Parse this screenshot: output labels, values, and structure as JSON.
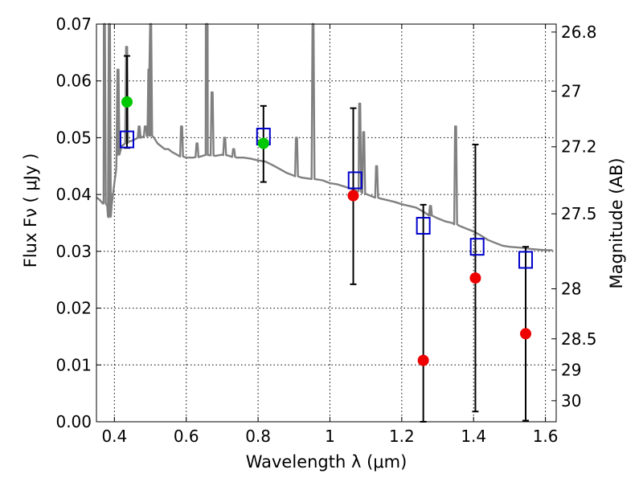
{
  "chart_data": {
    "type": "scatter",
    "xlabel": "Wavelength  λ (μm)",
    "ylabel": "Flux  Fν  ( μJy )",
    "y2label": "Magnitude (AB)",
    "xlim": [
      0.35,
      1.63
    ],
    "ylim": [
      0.0,
      0.07
    ],
    "grid": true,
    "x_ticks": [
      0.4,
      0.6,
      0.8,
      1.0,
      1.2,
      1.4,
      1.6
    ],
    "x_tick_labels": [
      "0.4",
      "0.6",
      "0.8",
      "1",
      "1.2",
      "1.4",
      "1.6"
    ],
    "y_ticks": [
      0.0,
      0.01,
      0.02,
      0.03,
      0.04,
      0.05,
      0.06,
      0.07
    ],
    "y_tick_labels": [
      "0.00",
      "0.01",
      "0.02",
      "0.03",
      "0.04",
      "0.05",
      "0.06",
      "0.07"
    ],
    "y2_ticks": [
      {
        "label": "26.8",
        "flux": 0.0686
      },
      {
        "label": "27",
        "flux": 0.0582
      },
      {
        "label": "27.2",
        "flux": 0.0484
      },
      {
        "label": "27.5",
        "flux": 0.0366
      },
      {
        "label": "28",
        "flux": 0.0234
      },
      {
        "label": "28.5",
        "flux": 0.0146
      },
      {
        "label": "29",
        "flux": 0.0091
      },
      {
        "label": "30",
        "flux": 0.0037
      }
    ],
    "colors": {
      "spectrum": "#808080",
      "green": "#00c800",
      "red": "#ee0000",
      "model_box": "#0000cc",
      "errorbar": "#000000"
    },
    "spectrum": {
      "name": "",
      "x": [
        0.35,
        0.36,
        0.37,
        0.38,
        0.385,
        0.39,
        0.392,
        0.395,
        0.4,
        0.405,
        0.41,
        0.42,
        0.43,
        0.44,
        0.45,
        0.46,
        0.47,
        0.48,
        0.49,
        0.5,
        0.51,
        0.52,
        0.53,
        0.54,
        0.55,
        0.56,
        0.58,
        0.6,
        0.62,
        0.64,
        0.66,
        0.68,
        0.7,
        0.72,
        0.74,
        0.76,
        0.78,
        0.8,
        0.82,
        0.84,
        0.86,
        0.88,
        0.9,
        0.92,
        0.94,
        0.96,
        0.98,
        1.0,
        1.02,
        1.04,
        1.06,
        1.08,
        1.1,
        1.12,
        1.14,
        1.16,
        1.18,
        1.2,
        1.22,
        1.24,
        1.26,
        1.28,
        1.3,
        1.32,
        1.34,
        1.36,
        1.38,
        1.4,
        1.42,
        1.44,
        1.46,
        1.48,
        1.5,
        1.52,
        1.54,
        1.56,
        1.58,
        1.6,
        1.62
      ],
      "y": [
        0.0395,
        0.039,
        0.0385,
        0.038,
        0.036,
        0.0365,
        0.038,
        0.0395,
        0.042,
        0.0445,
        0.047,
        0.0485,
        0.049,
        0.0493,
        0.0495,
        0.0498,
        0.05,
        0.0502,
        0.0503,
        0.0504,
        0.05,
        0.049,
        0.0485,
        0.048,
        0.048,
        0.0475,
        0.0468,
        0.0465,
        0.0465,
        0.0467,
        0.047,
        0.0468,
        0.047,
        0.0468,
        0.0465,
        0.0465,
        0.0463,
        0.046,
        0.0458,
        0.0452,
        0.0445,
        0.0438,
        0.0433,
        0.043,
        0.0428,
        0.0427,
        0.0425,
        0.042,
        0.0418,
        0.0414,
        0.041,
        0.0406,
        0.0401,
        0.0396,
        0.0393,
        0.039,
        0.0387,
        0.0383,
        0.038,
        0.0377,
        0.037,
        0.0363,
        0.0358,
        0.0353,
        0.035,
        0.0345,
        0.034,
        0.0335,
        0.0328,
        0.032,
        0.0315,
        0.031,
        0.0308,
        0.0307,
        0.0306,
        0.0304,
        0.0303,
        0.0302,
        0.0302
      ]
    },
    "emission_lines": [
      {
        "x": 0.372,
        "peak": 0.07
      },
      {
        "x": 0.386,
        "peak": 0.07
      },
      {
        "x": 0.41,
        "peak": 0.062
      },
      {
        "x": 0.434,
        "peak": 0.066
      },
      {
        "x": 0.469,
        "peak": 0.052
      },
      {
        "x": 0.486,
        "peak": 0.052
      },
      {
        "x": 0.496,
        "peak": 0.062
      },
      {
        "x": 0.501,
        "peak": 0.07
      },
      {
        "x": 0.587,
        "peak": 0.052
      },
      {
        "x": 0.63,
        "peak": 0.049
      },
      {
        "x": 0.656,
        "peak": 0.07
      },
      {
        "x": 0.658,
        "peak": 0.07
      },
      {
        "x": 0.672,
        "peak": 0.058
      },
      {
        "x": 0.707,
        "peak": 0.05
      },
      {
        "x": 0.732,
        "peak": 0.048
      },
      {
        "x": 0.907,
        "peak": 0.05
      },
      {
        "x": 0.953,
        "peak": 0.07
      },
      {
        "x": 1.083,
        "peak": 0.056
      },
      {
        "x": 1.094,
        "peak": 0.051
      },
      {
        "x": 1.13,
        "peak": 0.045
      },
      {
        "x": 1.28,
        "peak": 0.038
      },
      {
        "x": 1.35,
        "peak": 0.052
      }
    ],
    "green_points": {
      "x": [
        0.435,
        0.815
      ],
      "y": [
        0.0563,
        0.049
      ]
    },
    "red_points": {
      "x": [
        1.065,
        1.26,
        1.405,
        1.545
      ],
      "y": [
        0.0398,
        0.0108,
        0.0253,
        0.0155
      ]
    },
    "model_boxes": {
      "x": [
        0.435,
        0.815,
        1.07,
        1.26,
        1.41,
        1.545
      ],
      "y": [
        0.0497,
        0.0502,
        0.0425,
        0.0345,
        0.0308,
        0.0285
      ]
    },
    "error_bars": [
      {
        "x": 0.435,
        "low": 0.0482,
        "high": 0.0644
      },
      {
        "x": 0.815,
        "low": 0.0422,
        "high": 0.0556
      },
      {
        "x": 1.065,
        "low": 0.0242,
        "high": 0.0552
      },
      {
        "x": 1.26,
        "low": 0.0,
        "high": 0.0382
      },
      {
        "x": 1.405,
        "low": 0.0018,
        "high": 0.0488
      },
      {
        "x": 1.545,
        "low": 0.0002,
        "high": 0.0308
      }
    ]
  }
}
